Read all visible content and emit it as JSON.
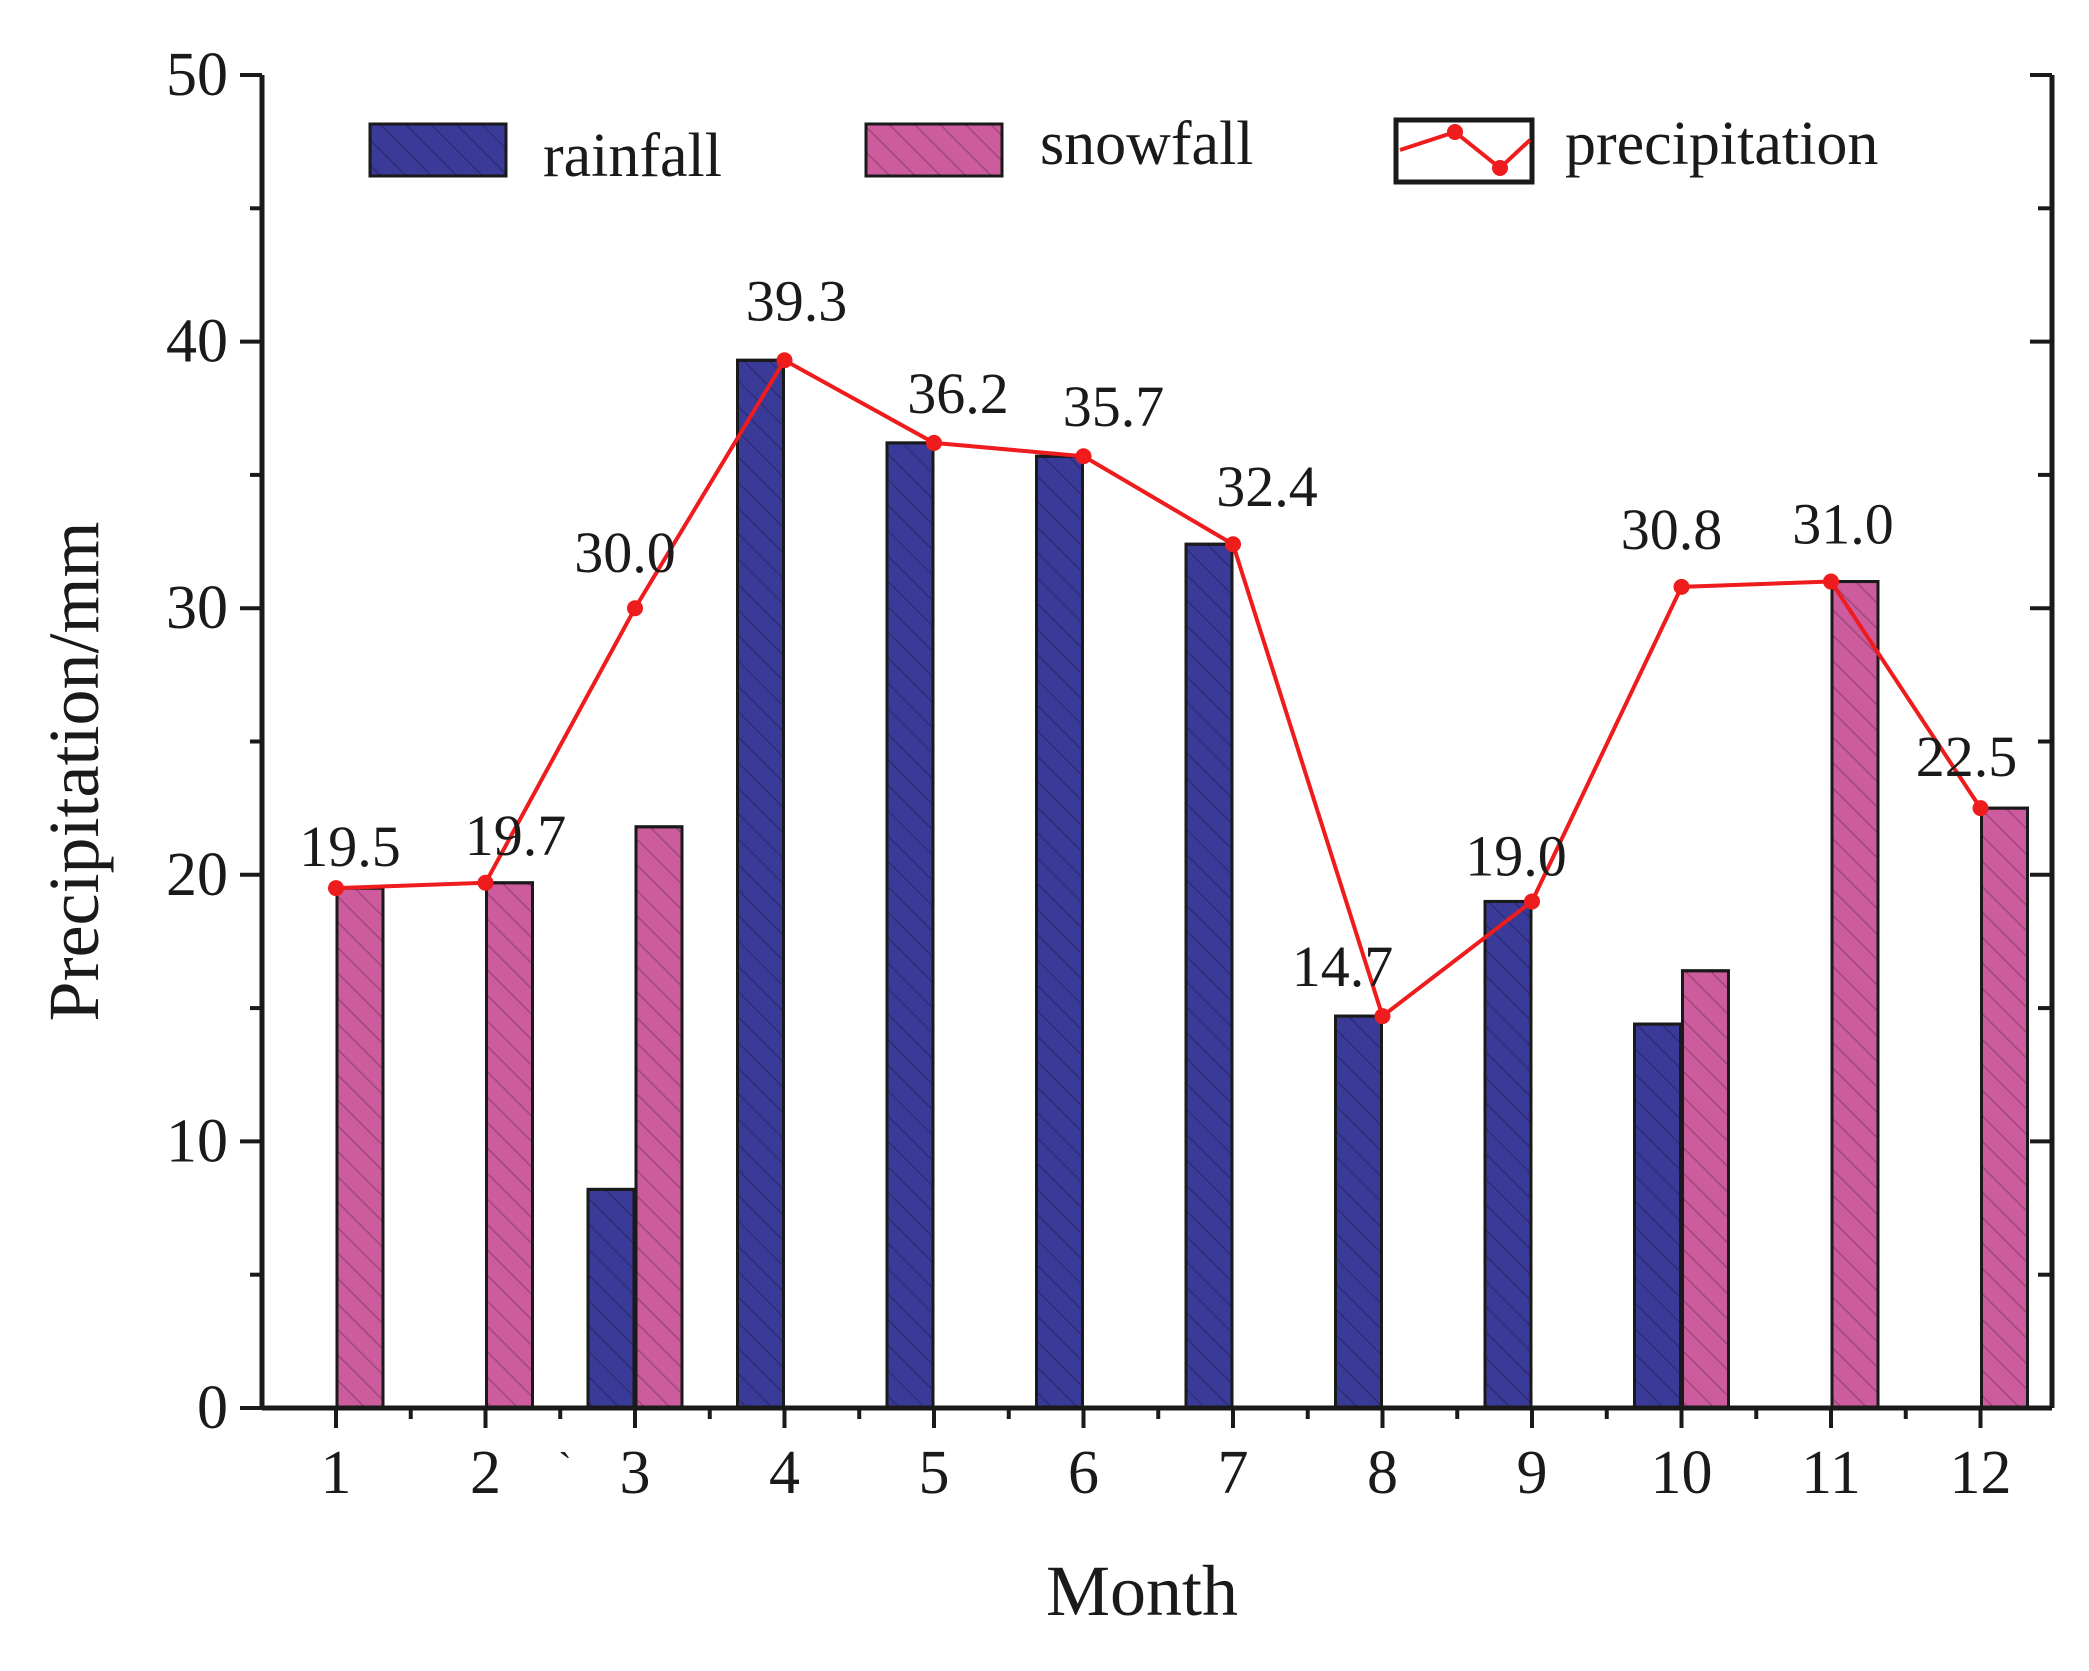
{
  "chart_data": {
    "type": "bar",
    "title": "",
    "xlabel": "Month",
    "ylabel": "Precipitation/mm",
    "categories": [
      "1",
      "2",
      "3",
      "4",
      "5",
      "6",
      "7",
      "8",
      "9",
      "10",
      "11",
      "12"
    ],
    "ylim": [
      0,
      50
    ],
    "yticks": [
      "0",
      "10",
      "20",
      "30",
      "40",
      "50"
    ],
    "grid": false,
    "legend_position": "top",
    "series": [
      {
        "name": "rainfall",
        "kind": "bar",
        "color": "#3a3a98",
        "values": [
          0,
          0,
          8.2,
          39.3,
          36.2,
          35.7,
          32.4,
          14.7,
          19.0,
          14.4,
          0,
          0
        ]
      },
      {
        "name": "snowfall",
        "kind": "bar",
        "color": "#cc5c9e",
        "values": [
          19.5,
          19.7,
          21.8,
          0,
          0,
          0,
          0,
          0,
          0,
          16.4,
          31.0,
          22.5
        ]
      },
      {
        "name": "precipitation",
        "kind": "line",
        "color": "#ee1c1c",
        "values": [
          19.5,
          19.7,
          30.0,
          39.3,
          36.2,
          35.7,
          32.4,
          14.7,
          19.0,
          30.8,
          31.0,
          22.5
        ],
        "labels": [
          "19.5",
          "19.7",
          "30.0",
          "39.3",
          "36.2",
          "35.7",
          "32.4",
          "14.7",
          "19.0",
          "30.8",
          "31.0",
          "22.5"
        ]
      }
    ],
    "annotations": [
      {
        "text": "`",
        "near_category": "3",
        "description": "stray mark below axis"
      }
    ]
  }
}
